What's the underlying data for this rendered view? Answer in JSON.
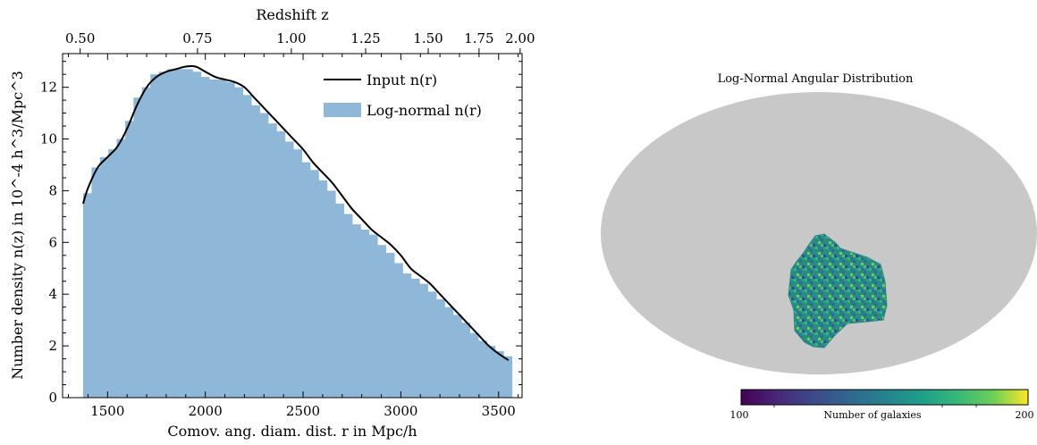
{
  "chart_data": [
    {
      "type": "bar",
      "xlabel": "Comov. ang. diam. dist. r in Mpc/h",
      "x2label": "Redshift z",
      "ylabel": "Number density n(z) in 10^-4 h^3/Mpc^3",
      "xlim": [
        1270,
        3620
      ],
      "ylim": [
        0,
        13.3
      ],
      "x_ticks": [
        1500,
        2000,
        2500,
        3000,
        3500
      ],
      "y_ticks": [
        0,
        2,
        4,
        6,
        8,
        10,
        12
      ],
      "z_ticks": [
        {
          "r": 1360,
          "label": "0.50"
        },
        {
          "r": 1960,
          "label": "0.75"
        },
        {
          "r": 2440,
          "label": "1.00"
        },
        {
          "r": 2820,
          "label": "1.25"
        },
        {
          "r": 3140,
          "label": "1.50"
        },
        {
          "r": 3400,
          "label": "1.75"
        },
        {
          "r": 3610,
          "label": "2.00"
        }
      ],
      "legend_position": "top-right",
      "series": [
        {
          "name": "Log-normal n(r)",
          "kind": "histogram",
          "color": "#8fb8d8",
          "bin_width": 43,
          "bin_start": 1375,
          "values": [
            7.9,
            8.9,
            9.3,
            9.6,
            10.0,
            10.7,
            11.6,
            12.0,
            12.5,
            12.6,
            12.7,
            12.7,
            12.7,
            12.6,
            12.4,
            12.3,
            12.3,
            12.2,
            12.0,
            11.7,
            11.3,
            11.0,
            10.6,
            10.3,
            9.9,
            9.6,
            9.1,
            8.8,
            8.4,
            8.0,
            7.5,
            7.1,
            6.7,
            6.5,
            6.3,
            5.9,
            5.6,
            5.2,
            4.8,
            4.6,
            4.4,
            4.1,
            3.8,
            3.5,
            3.2,
            2.9,
            2.5,
            2.2,
            2.0,
            1.8,
            1.6
          ]
        },
        {
          "name": "Input n(r)",
          "kind": "line",
          "color": "#000000",
          "x": [
            1375,
            1400,
            1450,
            1500,
            1550,
            1600,
            1650,
            1700,
            1750,
            1800,
            1850,
            1900,
            1950,
            2000,
            2050,
            2100,
            2150,
            2200,
            2250,
            2300,
            2350,
            2400,
            2450,
            2500,
            2550,
            2600,
            2650,
            2700,
            2750,
            2800,
            2850,
            2900,
            2950,
            3000,
            3050,
            3100,
            3150,
            3200,
            3250,
            3300,
            3350,
            3400,
            3450,
            3500,
            3550
          ],
          "y": [
            7.5,
            8.1,
            8.9,
            9.3,
            9.7,
            10.4,
            11.3,
            12.0,
            12.4,
            12.6,
            12.7,
            12.8,
            12.8,
            12.6,
            12.4,
            12.3,
            12.2,
            12.0,
            11.6,
            11.2,
            10.8,
            10.4,
            10.0,
            9.6,
            9.1,
            8.7,
            8.3,
            7.8,
            7.3,
            6.9,
            6.5,
            6.2,
            5.9,
            5.5,
            5.0,
            4.7,
            4.4,
            4.0,
            3.6,
            3.2,
            2.8,
            2.4,
            2.0,
            1.7,
            1.45
          ]
        }
      ]
    },
    {
      "type": "heatmap",
      "title": "Log-Normal Angular Distribution",
      "projection": "Mollweide",
      "background_color": "#c8c8c8",
      "colormap": "viridis",
      "colorbar": {
        "min": 100,
        "max": 200,
        "label": "Number of galaxies",
        "min_label": "100",
        "max_label": "200"
      }
    }
  ]
}
